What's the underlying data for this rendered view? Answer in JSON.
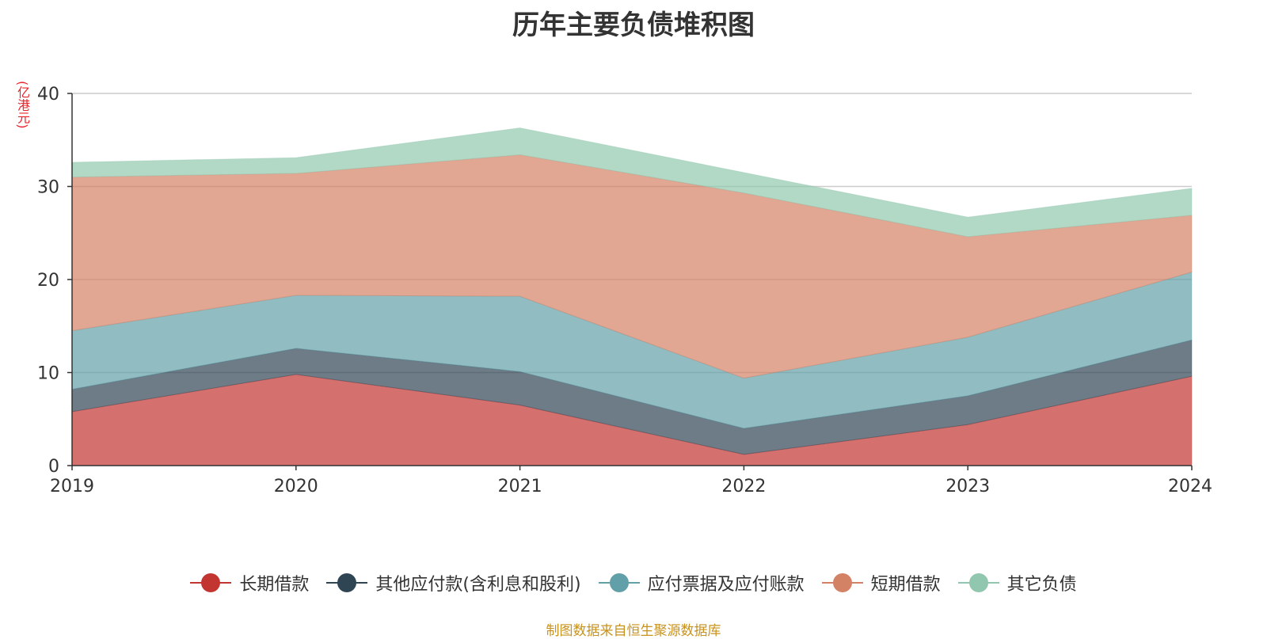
{
  "chart_data": {
    "type": "area",
    "stacked": true,
    "title": "历年主要负债堆积图",
    "y_unit_label": "(亿港元)",
    "x": [
      "2019",
      "2020",
      "2021",
      "2022",
      "2023",
      "2024"
    ],
    "ylim": [
      0,
      40
    ],
    "yticks": [
      0,
      10,
      20,
      30,
      40
    ],
    "grid": true,
    "legend_position": "bottom",
    "series": [
      {
        "name": "长期借款",
        "color": "#c23531",
        "values": [
          5.8,
          9.8,
          6.5,
          1.2,
          4.4,
          9.6
        ]
      },
      {
        "name": "其他应付款(含利息和股利)",
        "color": "#2f4554",
        "values": [
          2.4,
          2.8,
          3.6,
          2.8,
          3.1,
          3.9
        ]
      },
      {
        "name": "应付票据及应付账款",
        "color": "#61a0a8",
        "values": [
          6.3,
          5.7,
          8.1,
          5.4,
          6.3,
          7.3
        ]
      },
      {
        "name": "短期借款",
        "color": "#d48265",
        "values": [
          16.5,
          13.1,
          15.2,
          19.9,
          10.8,
          6.1
        ]
      },
      {
        "name": "其它负债",
        "color": "#91c7ae",
        "values": [
          1.6,
          1.7,
          2.9,
          2.2,
          2.1,
          2.9
        ]
      }
    ]
  },
  "source_note": "制图数据来自恒生聚源数据库"
}
